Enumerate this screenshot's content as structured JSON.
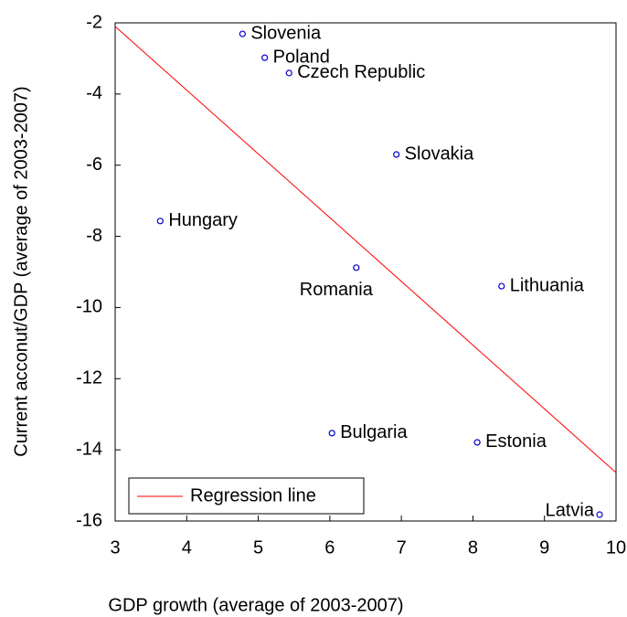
{
  "chart_data": {
    "type": "scatter",
    "xlabel": "GDP growth (average of 2003-2007)",
    "ylabel": "Current acconut/GDP (average of 2003-2007)",
    "xlim": [
      3,
      10
    ],
    "xticks": [
      3,
      4,
      5,
      6,
      7,
      8,
      9,
      10
    ],
    "ylim": [
      -16,
      -2
    ],
    "yticks": [
      -16,
      -14,
      -12,
      -10,
      -8,
      -6,
      -4,
      -2
    ],
    "points": {
      "color": "#0000cc",
      "labels": [
        "Slovenia",
        "Poland",
        "Czech Republic",
        "Slovakia",
        "Hungary",
        "Romania",
        "Lithuania",
        "Bulgaria",
        "Estonia",
        "Latvia"
      ],
      "x": [
        4.78,
        5.09,
        5.43,
        6.93,
        3.63,
        6.37,
        8.4,
        6.03,
        8.06,
        9.77
      ],
      "y": [
        -2.31,
        -2.98,
        -3.41,
        -5.7,
        -7.57,
        -8.88,
        -9.4,
        -13.53,
        -13.79,
        -15.82
      ]
    },
    "regression": {
      "name": "Regression line",
      "color": "#ff0000",
      "x": [
        3,
        10
      ],
      "y": [
        -2.1,
        -14.64
      ]
    },
    "legend": "lower left"
  }
}
